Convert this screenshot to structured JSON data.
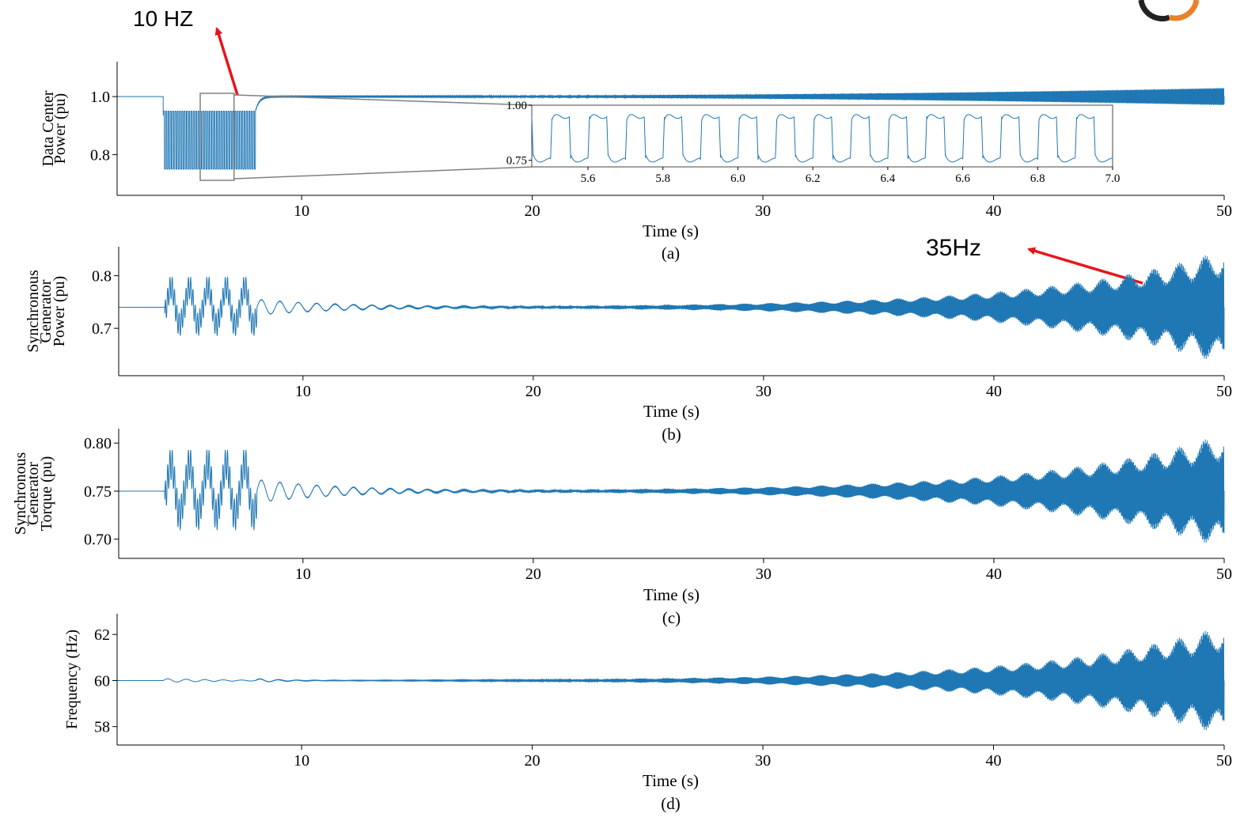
{
  "annotations": {
    "left_label": "10 HZ",
    "right_label": "35Hz",
    "arrow_color": "#e8141b"
  },
  "logo": {
    "icon": "partial-circle-logo-icon",
    "colors": [
      "#222222",
      "#e8822a"
    ]
  },
  "style": {
    "line_color": "#1f77b4",
    "axis_color": "#000000",
    "inset_box_color": "#808080"
  },
  "chart_data": [
    {
      "id": "a",
      "type": "line",
      "caption": "(a)",
      "xlabel": "Time (s)",
      "ylabel_lines": [
        "Data Center",
        "Power (pu)"
      ],
      "xlim": [
        2,
        50
      ],
      "ylim": [
        0.66,
        1.12
      ],
      "xticks": [
        10,
        20,
        30,
        40,
        50
      ],
      "yticks": [
        {
          "v": 0.8,
          "label": "0.8"
        },
        {
          "v": 1.0,
          "label": "1.0"
        }
      ],
      "grid": false,
      "series": [
        {
          "segments": [
            {
              "t0": 2,
              "t1": 4,
              "kind": "constant",
              "value": 1.0
            },
            {
              "t0": 4,
              "t1": 8,
              "kind": "square_wave",
              "frequency_hz": 10,
              "high": 0.95,
              "low": 0.75
            },
            {
              "t0": 8,
              "t1": 50,
              "kind": "ringing",
              "value": 1.0,
              "frequency_hz": 35,
              "amplitude_start": 0.002,
              "amplitude_end": 0.03
            }
          ]
        }
      ],
      "zoom_region": {
        "x": [
          5.5,
          7.0
        ],
        "y": [
          0.7,
          1.0
        ]
      },
      "inset": {
        "xlim": [
          5.45,
          7.0
        ],
        "ylim": [
          0.72,
          1.0
        ],
        "xticks": [
          {
            "v": 5.6,
            "label": "5.6"
          },
          {
            "v": 5.8,
            "label": "5.8"
          },
          {
            "v": 6.0,
            "label": "6.0"
          },
          {
            "v": 6.2,
            "label": "6.2"
          },
          {
            "v": 6.4,
            "label": "6.4"
          },
          {
            "v": 6.6,
            "label": "6.6"
          },
          {
            "v": 6.8,
            "label": "6.8"
          },
          {
            "v": 7.0,
            "label": "7.0"
          }
        ],
        "yticks": [
          {
            "v": 0.75,
            "label": "0.75"
          },
          {
            "v": 1.0,
            "label": "1.00"
          }
        ],
        "square_wave": {
          "frequency_hz": 10,
          "high": 0.95,
          "low": 0.75
        }
      }
    },
    {
      "id": "b",
      "type": "line",
      "caption": "(b)",
      "xlabel": "Time (s)",
      "ylabel_lines": [
        "Synchronous",
        "Generator",
        "Power (pu)"
      ],
      "xlim": [
        2,
        50
      ],
      "ylim": [
        0.61,
        0.855
      ],
      "xticks": [
        10,
        20,
        30,
        40,
        50
      ],
      "yticks": [
        {
          "v": 0.7,
          "label": "0.7"
        },
        {
          "v": 0.8,
          "label": "0.8"
        }
      ],
      "grid": false,
      "series": [
        {
          "baseline": 0.74,
          "disturbance": {
            "t0": 4,
            "t1": 8,
            "amplitude": 0.04,
            "slow_hz": 1.25,
            "fast_hz": 10
          },
          "damped_mode": {
            "frequency_hz": 1.25,
            "amplitude": 0.015,
            "decay_end": 20
          },
          "growing_mode": {
            "frequency_hz": 35,
            "amplitude_at_50": 0.11,
            "onset": 25
          }
        }
      ]
    },
    {
      "id": "c",
      "type": "line",
      "caption": "(c)",
      "xlabel": "Time (s)",
      "ylabel_lines": [
        "Synchronous",
        "Generator",
        "Torque (pu)"
      ],
      "xlim": [
        2,
        50
      ],
      "ylim": [
        0.68,
        0.815
      ],
      "xticks": [
        10,
        20,
        30,
        40,
        50
      ],
      "yticks": [
        {
          "v": 0.7,
          "label": "0.70"
        },
        {
          "v": 0.75,
          "label": "0.75"
        },
        {
          "v": 0.8,
          "label": "0.80"
        }
      ],
      "grid": false,
      "series": [
        {
          "baseline": 0.75,
          "disturbance": {
            "t0": 4,
            "t1": 8,
            "amplitude": 0.03,
            "slow_hz": 1.25,
            "fast_hz": 10
          },
          "damped_mode": {
            "frequency_hz": 1.25,
            "amplitude": 0.012,
            "decay_end": 20
          },
          "growing_mode": {
            "frequency_hz": 35,
            "amplitude_at_50": 0.06,
            "onset": 25
          }
        }
      ]
    },
    {
      "id": "d",
      "type": "line",
      "caption": "(d)",
      "xlabel": "Time (s)",
      "ylabel_lines": [
        "Frequency (Hz)"
      ],
      "xlim": [
        2,
        50
      ],
      "ylim": [
        57.2,
        62.9
      ],
      "xticks": [
        10,
        20,
        30,
        40,
        50
      ],
      "yticks": [
        {
          "v": 58,
          "label": "58"
        },
        {
          "v": 60,
          "label": "60"
        },
        {
          "v": 62,
          "label": "62"
        }
      ],
      "grid": false,
      "series": [
        {
          "baseline": 60,
          "damped_mode": {
            "frequency_hz": 1.25,
            "amplitude": 0.08,
            "decay_end": 12
          },
          "growing_mode": {
            "frequency_hz": 35,
            "amplitude_at_50": 2.4,
            "onset": 25
          }
        }
      ]
    }
  ]
}
